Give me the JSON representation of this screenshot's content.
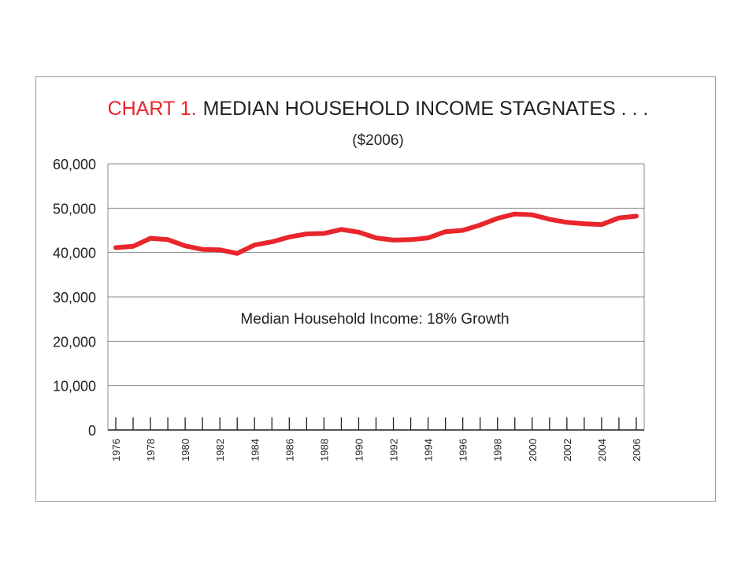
{
  "chart_data": {
    "type": "line",
    "title_prefix": "CHART 1.",
    "title_main": "MEDIAN HOUSEHOLD INCOME STAGNATES . . .",
    "subtitle": "($2006)",
    "annotation": "Median Household Income: 18% Growth",
    "xlabel": "",
    "ylabel": "",
    "ylim": [
      0,
      60000
    ],
    "yticks": [
      "0",
      "10,000",
      "20,000",
      "30,000",
      "40,000",
      "50,000",
      "60,000"
    ],
    "xlim": [
      1976,
      2006
    ],
    "x_labels": [
      "1976",
      "1978",
      "1980",
      "1982",
      "1984",
      "1986",
      "1988",
      "1990",
      "1992",
      "1994",
      "1996",
      "1998",
      "2000",
      "2002",
      "2004",
      "2006"
    ],
    "grid": true,
    "series": [
      {
        "color": "#e8262b",
        "x": [
          1976,
          1977,
          1978,
          1979,
          1980,
          1981,
          1982,
          1983,
          1984,
          1985,
          1986,
          1987,
          1988,
          1989,
          1990,
          1991,
          1992,
          1993,
          1994,
          1995,
          1996,
          1997,
          1998,
          1999,
          2000,
          2001,
          2002,
          2003,
          2004,
          2005,
          2006
        ],
        "values": [
          41100,
          41400,
          43200,
          42900,
          41500,
          40700,
          40600,
          39800,
          41700,
          42400,
          43500,
          44200,
          44300,
          45200,
          44600,
          43300,
          42800,
          42900,
          43300,
          44700,
          45000,
          46200,
          47700,
          48700,
          48500,
          47500,
          46800,
          46500,
          46300,
          47800,
          48200
        ]
      }
    ],
    "colors": {
      "title_prefix": "#e8262b",
      "title_main": "#231f20",
      "text": "#231f20",
      "grid": "#8a8a8a",
      "frame": "#9a9a9a"
    }
  }
}
